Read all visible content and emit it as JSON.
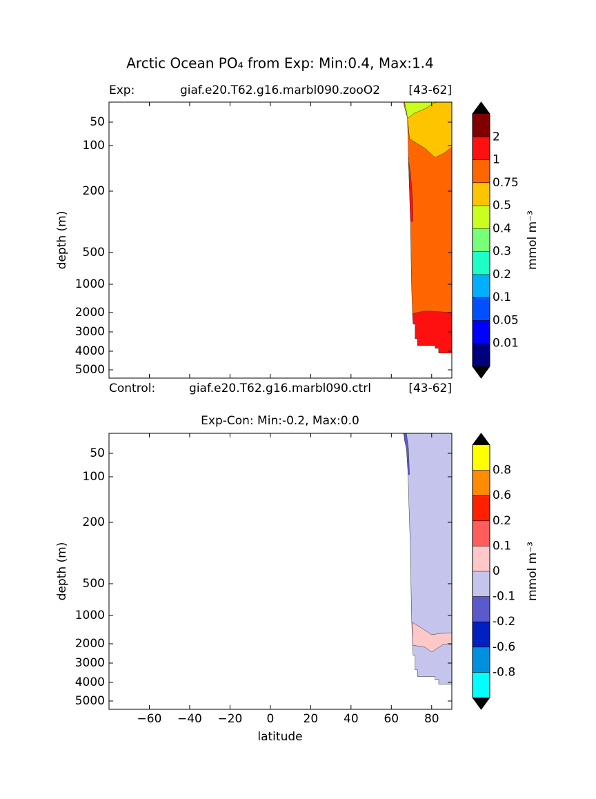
{
  "chart_data": [
    {
      "type": "contour",
      "title": "Arctic Ocean PO₄ from Exp: Min:0.4, Max:1.4",
      "exp_label": "Exp:",
      "exp_case": "giaf.e20.T62.g16.marbl090.zooO2",
      "exp_years": "[43-62]",
      "control_label": "Control:",
      "control_case": "giaf.e20.T62.g16.marbl090.ctrl",
      "control_years": "[43-62]",
      "y_label": "depth (m)",
      "xlim": [
        -80,
        90
      ],
      "ylim": [
        5,
        5450
      ],
      "yticks": [
        50,
        100,
        200,
        500,
        1000,
        2000,
        3000,
        4000,
        5000
      ],
      "y_inverted": true,
      "regions": [
        {
          "color": "#ff6600",
          "x": [
            66,
            90,
            90,
            83.5,
            83.5,
            81.7,
            81.7,
            73,
            73,
            71.8,
            71.8,
            70.8,
            70.5,
            70,
            69.5,
            68.5,
            68,
            66.5
          ],
          "y": [
            5,
            5,
            4100,
            4100,
            3850,
            3850,
            3700,
            3700,
            3350,
            3350,
            2600,
            2600,
            2000,
            1000,
            345,
            129,
            40,
            15
          ]
        },
        {
          "color": "#ff1010",
          "x": [
            70.5,
            76,
            80,
            90,
            90,
            83.5,
            83.5,
            81.7,
            81.7,
            73,
            73,
            71.8,
            71.8,
            70.8
          ],
          "y": [
            2050,
            1950,
            1950,
            2000,
            4100,
            4100,
            3850,
            3850,
            3700,
            3700,
            3350,
            3350,
            2600,
            2600
          ]
        },
        {
          "color": "#ff1010",
          "x": [
            68.3,
            69.5,
            70.6,
            70.8,
            69.5,
            68.5
          ],
          "y": [
            125,
            160,
            250,
            350,
            345,
            129
          ]
        },
        {
          "color": "#ffc400",
          "x": [
            67,
            90,
            90,
            86,
            81.7,
            76.7,
            71.4,
            69,
            68,
            66.5
          ],
          "y": [
            5,
            5,
            103,
            117,
            126,
            106,
            92,
            85,
            40,
            15
          ]
        },
        {
          "color": "#c8ff1e",
          "x": [
            66.5,
            82.5,
            80,
            76.7,
            71.4,
            68,
            67.5
          ],
          "y": [
            5,
            5,
            10,
            20,
            30,
            42,
            25
          ]
        }
      ],
      "colorbar": {
        "label": "mmol m⁻³",
        "extend_color": "#000000",
        "levels": [
          0.01,
          0.05,
          0.1,
          0.2,
          0.3,
          0.4,
          0.5,
          0.75,
          1,
          2
        ],
        "colors": [
          "#00007f",
          "#0000ff",
          "#0050ff",
          "#00b0ff",
          "#1effc8",
          "#78ff78",
          "#c8ff1e",
          "#ffc400",
          "#ff6600",
          "#ff1010",
          "#800000"
        ]
      }
    },
    {
      "type": "contour",
      "title": "Exp-Con: Min:-0.2, Max:0.0",
      "y_label": "depth (m)",
      "x_label": "latitude",
      "xlim": [
        -80,
        90
      ],
      "xticks": [
        {
          "value": -60,
          "label": "−60"
        },
        {
          "value": -40,
          "label": "−40"
        },
        {
          "value": -20,
          "label": "−20"
        },
        0,
        20,
        40,
        60,
        80
      ],
      "ylim": [
        5,
        5450
      ],
      "yticks": [
        50,
        100,
        200,
        500,
        1000,
        2000,
        3000,
        4000,
        5000
      ],
      "y_inverted": true,
      "regions": [
        {
          "color": "#c4c4ec",
          "x": [
            66,
            90,
            90,
            83.5,
            83.5,
            81.7,
            81.7,
            73,
            73,
            71.8,
            71.8,
            70.8,
            70.5,
            70,
            69.5,
            68.5,
            68,
            66.5
          ],
          "y": [
            5,
            5,
            4100,
            4100,
            3850,
            3850,
            3700,
            3700,
            3350,
            3350,
            2600,
            2600,
            2000,
            1000,
            345,
            129,
            40,
            15
          ]
        },
        {
          "color": "#5a5acc",
          "x": [
            66.3,
            67.5,
            68.5,
            69,
            68.3,
            67.5,
            66.5
          ],
          "y": [
            5,
            5,
            40,
            95,
            95,
            40,
            20
          ]
        },
        {
          "color": "#ffc8c8",
          "x": [
            70.3,
            74.9,
            80,
            85.1,
            90,
            90,
            87.9,
            85.1,
            80,
            76.7,
            70.5
          ],
          "y": [
            1240,
            1440,
            1680,
            1630,
            1610,
            2070,
            2000,
            2070,
            2430,
            2180,
            2070
          ]
        }
      ],
      "colorbar": {
        "label": "mmol m⁻³",
        "extend_color": "#000000",
        "levels": [
          -0.8,
          -0.6,
          -0.2,
          -0.1,
          0,
          0.1,
          0.2,
          0.6,
          0.8
        ],
        "colors": [
          "#00ffff",
          "#0090e0",
          "#0020c0",
          "#5a5acc",
          "#c4c4ec",
          "#ffc8c8",
          "#ff5c5c",
          "#ff2000",
          "#ff8c00",
          "#ffff00"
        ]
      }
    }
  ]
}
